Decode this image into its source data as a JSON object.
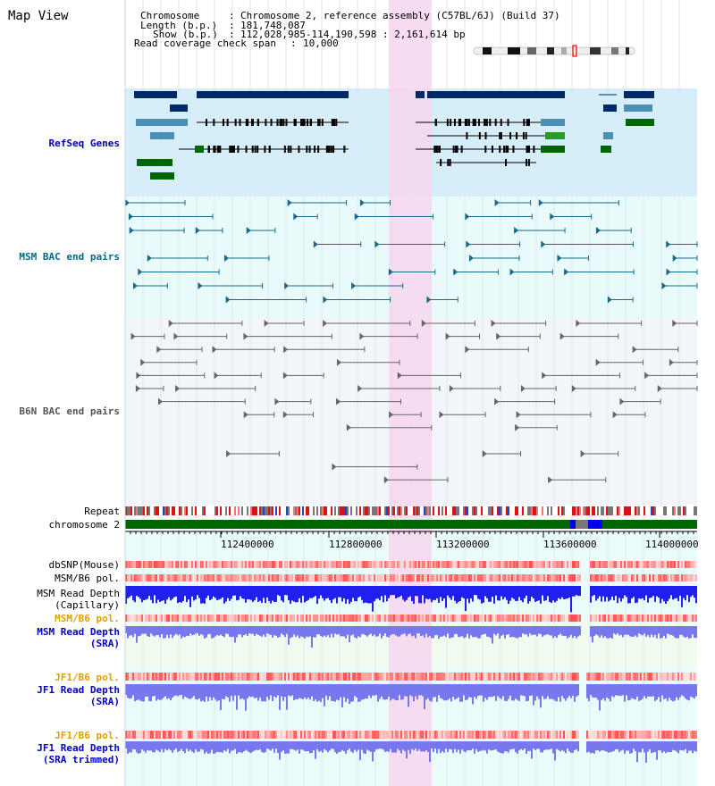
{
  "window_title": "Map View",
  "header": {
    "chromosome_label": "Chromosome",
    "chromosome_value": "Chromosome 2, reference assembly (C57BL/6J) (Build 37)",
    "length_label": "Length (b.p.)",
    "length_value": "181,748,087",
    "show_label": "Show (b.p.)",
    "show_value": "112,028,985-114,190,598 : 2,161,614 bp",
    "coverage_label": "Read coverage check span",
    "coverage_value": "10,000"
  },
  "tracks": {
    "refseq": "RefSeq Genes",
    "msm_bac": "MSM BAC end pairs",
    "b6n_bac": "B6N BAC end pairs",
    "repeat": "Repeat",
    "chromosome": "chromosome 2",
    "dbsnp": "dbSNP(Mouse)",
    "msm_b6_pol_1": "MSM/B6 pol.",
    "msm_read_depth_cap_1": "MSM Read Depth",
    "msm_read_depth_cap_2": "(Capillary)",
    "msm_b6_pol_2": "MSM/B6 pol.",
    "msm_read_depth_sra_1": "MSM Read Depth",
    "msm_read_depth_sra_2": "(SRA)",
    "jf1_b6_pol_1": "JF1/B6 pol.",
    "jf1_read_depth_sra_1": "JF1 Read Depth",
    "jf1_read_depth_sra_2": "(SRA)",
    "jf1_b6_pol_2": "JF1/B6 pol.",
    "jf1_read_depth_trim_1": "JF1 Read Depth",
    "jf1_read_depth_trim_2": "(SRA trimmed)"
  },
  "axis_ticks": [
    "112400000",
    "112800000",
    "113200000",
    "113600000",
    "114000000"
  ],
  "colors": {
    "highlight": "#f7d6ef",
    "refseq_bg": "#d6eefa",
    "msm_bg": "#e8fafa",
    "b6n_bg": "#f2f6fa",
    "lower_bg": "#eafcfa",
    "dark_gene": "#002a66",
    "mid_gene": "#4a90b8",
    "green_gene": "#006600",
    "msm_pair": "#1a6a8a",
    "b6n_pair": "#666666",
    "chromosome": "#006600",
    "depth_blue": "#2020ee",
    "depth_light": "#7777ee"
  }
}
